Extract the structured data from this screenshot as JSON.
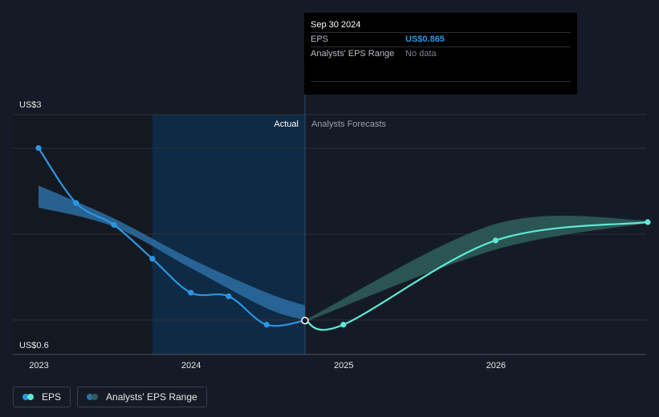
{
  "tooltip": {
    "date": "Sep 30 2024",
    "rows": [
      {
        "label": "EPS",
        "value": "US$0.865"
      },
      {
        "label": "Analysts' EPS Range",
        "value": "No data"
      }
    ]
  },
  "legend": [
    {
      "label": "EPS",
      "colors": [
        "#2c96e2",
        "#5ee8d6"
      ]
    },
    {
      "label": "Analysts' EPS Range",
      "colors": [
        "#2c6fa3",
        "#2e5f5c"
      ]
    }
  ],
  "colors": {
    "background": "#151b26",
    "eps_actual": "#2c96e2",
    "eps_forecast": "#5ee8d6",
    "range_actual": "#2c6fa3",
    "range_forecast": "#2e5f5c",
    "highlight_band": "#0f2a45",
    "past_shade": "#141820"
  },
  "chart_data": {
    "type": "line",
    "y_tick_labels": [
      "US$3",
      "US$0.6"
    ],
    "x_tick_labels": [
      "2023",
      "2024",
      "2025",
      "2026"
    ],
    "divider_labels": {
      "left": "Actual",
      "right": "Analysts Forecasts"
    },
    "ylim": [
      0.6,
      3
    ],
    "x_domain": [
      "2023-01-01",
      "2026-12-31"
    ],
    "highlight_range": [
      "2023-09-30",
      "2024-09-30"
    ],
    "series": [
      {
        "name": "EPS",
        "segment": "actual",
        "points": [
          {
            "x": "2022-12-31",
            "y": 2.75
          },
          {
            "x": "2023-03-31",
            "y": 2.15
          },
          {
            "x": "2023-06-30",
            "y": 1.91
          },
          {
            "x": "2023-09-30",
            "y": 1.54
          },
          {
            "x": "2023-12-31",
            "y": 1.17
          },
          {
            "x": "2024-03-31",
            "y": 1.13
          },
          {
            "x": "2024-06-30",
            "y": 0.82
          },
          {
            "x": "2024-09-30",
            "y": 0.865
          }
        ]
      },
      {
        "name": "EPS",
        "segment": "forecast",
        "points": [
          {
            "x": "2024-09-30",
            "y": 0.865
          },
          {
            "x": "2024-12-31",
            "y": 0.82
          },
          {
            "x": "2025-12-31",
            "y": 1.74
          },
          {
            "x": "2026-12-31",
            "y": 1.94
          }
        ]
      },
      {
        "name": "Analysts' EPS Range",
        "segment": "actual",
        "upper": [
          {
            "x": "2022-12-31",
            "y": 2.34
          },
          {
            "x": "2023-06-30",
            "y": 1.98
          },
          {
            "x": "2023-12-31",
            "y": 1.54
          },
          {
            "x": "2024-06-30",
            "y": 1.17
          },
          {
            "x": "2024-09-30",
            "y": 1.03
          }
        ],
        "lower": [
          {
            "x": "2022-12-31",
            "y": 2.1
          },
          {
            "x": "2023-06-30",
            "y": 1.89
          },
          {
            "x": "2023-12-31",
            "y": 1.44
          },
          {
            "x": "2024-06-30",
            "y": 1.0
          },
          {
            "x": "2024-09-30",
            "y": 0.87
          }
        ]
      },
      {
        "name": "Analysts' EPS Range",
        "segment": "forecast",
        "upper": [
          {
            "x": "2024-09-30",
            "y": 0.87
          },
          {
            "x": "2025-12-31",
            "y": 1.92
          },
          {
            "x": "2026-12-31",
            "y": 1.96
          }
        ],
        "lower": [
          {
            "x": "2024-09-30",
            "y": 0.85
          },
          {
            "x": "2025-12-31",
            "y": 1.64
          },
          {
            "x": "2026-12-31",
            "y": 1.93
          }
        ]
      }
    ],
    "grid": true,
    "legend_position": "bottom-left"
  }
}
